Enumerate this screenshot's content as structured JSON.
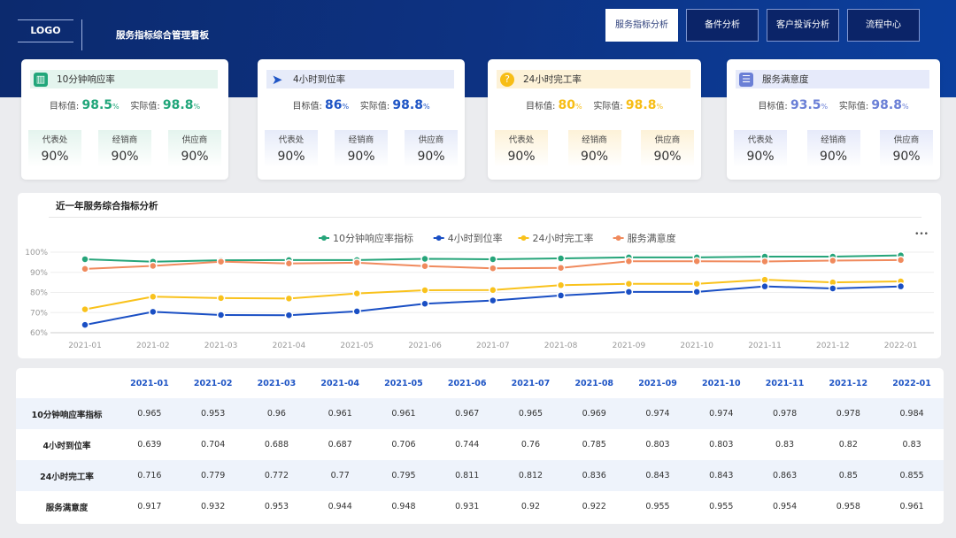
{
  "header": {
    "logo": "LOGO",
    "title": "服务指标综合管理看板"
  },
  "nav": [
    {
      "label": "服务指标分析",
      "active": true
    },
    {
      "label": "备件分析",
      "active": false
    },
    {
      "label": "客户投诉分析",
      "active": false
    },
    {
      "label": "流程中心",
      "active": false
    }
  ],
  "cards": [
    {
      "title": "10分钟响应率",
      "icon": "building-icon",
      "color": "#21a67a",
      "bg": "#e4f4ee",
      "target_label": "目标值:",
      "target": "98.5",
      "actual_label": "实际值:",
      "actual": "98.8",
      "unit": "%",
      "subs": [
        {
          "label": "代表处",
          "value": "90%"
        },
        {
          "label": "经销商",
          "value": "90%"
        },
        {
          "label": "供应商",
          "value": "90%"
        }
      ]
    },
    {
      "title": "4小时到位率",
      "icon": "paper-plane-icon",
      "color": "#1f55c5",
      "bg": "#e6ebf9",
      "target_label": "目标值:",
      "target": "86",
      "actual_label": "实际值:",
      "actual": "98.8",
      "unit": "%",
      "subs": [
        {
          "label": "代表处",
          "value": "90%"
        },
        {
          "label": "经销商",
          "value": "90%"
        },
        {
          "label": "供应商",
          "value": "90%"
        }
      ]
    },
    {
      "title": "24小时完工率",
      "icon": "question-bubble-icon",
      "color": "#f7bd15",
      "bg": "#fdf2d8",
      "target_label": "目标值:",
      "target": "80",
      "actual_label": "实际值:",
      "actual": "98.8",
      "unit": "%",
      "subs": [
        {
          "label": "代表处",
          "value": "90%"
        },
        {
          "label": "经销商",
          "value": "90%"
        },
        {
          "label": "供应商",
          "value": "90%"
        }
      ]
    },
    {
      "title": "服务满意度",
      "icon": "document-icon",
      "color": "#6a7fd6",
      "bg": "#e6eafa",
      "target_label": "目标值:",
      "target": "93.5",
      "actual_label": "实际值:",
      "actual": "98.8",
      "unit": "%",
      "subs": [
        {
          "label": "代表处",
          "value": "90%"
        },
        {
          "label": "经销商",
          "value": "90%"
        },
        {
          "label": "供应商",
          "value": "90%"
        }
      ]
    }
  ],
  "chart_panel": {
    "title": "近一年服务综合指标分析",
    "menu": "•••"
  },
  "chart_data": {
    "type": "line",
    "categories": [
      "2021-01",
      "2021-02",
      "2021-03",
      "2021-04",
      "2021-05",
      "2021-06",
      "2021-07",
      "2021-08",
      "2021-09",
      "2021-10",
      "2021-11",
      "2021-12",
      "2022-01"
    ],
    "y_ticks": [
      "60%",
      "70%",
      "80%",
      "90%",
      "100%"
    ],
    "ylim": [
      0.6,
      1.0
    ],
    "grid": true,
    "legend": "top-center",
    "series": [
      {
        "name": "10分钟响应率指标",
        "color": "#26a57a",
        "values": [
          0.965,
          0.953,
          0.96,
          0.961,
          0.961,
          0.967,
          0.965,
          0.969,
          0.974,
          0.974,
          0.978,
          0.978,
          0.984
        ]
      },
      {
        "name": "4小时到位率",
        "color": "#1a4fc4",
        "values": [
          0.639,
          0.704,
          0.688,
          0.687,
          0.706,
          0.744,
          0.76,
          0.785,
          0.803,
          0.803,
          0.83,
          0.82,
          0.83
        ]
      },
      {
        "name": "24小时完工率",
        "color": "#f9c21c",
        "values": [
          0.716,
          0.779,
          0.772,
          0.77,
          0.795,
          0.811,
          0.812,
          0.836,
          0.843,
          0.843,
          0.863,
          0.85,
          0.855
        ]
      },
      {
        "name": "服务满意度",
        "color": "#f08a5d",
        "values": [
          0.917,
          0.932,
          0.953,
          0.944,
          0.948,
          0.931,
          0.92,
          0.922,
          0.955,
          0.955,
          0.954,
          0.958,
          0.961
        ]
      }
    ]
  },
  "table": {
    "columns": [
      "2021-01",
      "2021-02",
      "2021-03",
      "2021-04",
      "2021-05",
      "2021-06",
      "2021-07",
      "2021-08",
      "2021-09",
      "2021-10",
      "2021-11",
      "2021-12",
      "2022-01"
    ],
    "rows": [
      {
        "label": "10分钟响应率指标",
        "values": [
          "0.965",
          "0.953",
          "0.96",
          "0.961",
          "0.961",
          "0.967",
          "0.965",
          "0.969",
          "0.974",
          "0.974",
          "0.978",
          "0.978",
          "0.984"
        ]
      },
      {
        "label": "4小时到位率",
        "values": [
          "0.639",
          "0.704",
          "0.688",
          "0.687",
          "0.706",
          "0.744",
          "0.76",
          "0.785",
          "0.803",
          "0.803",
          "0.83",
          "0.82",
          "0.83"
        ]
      },
      {
        "label": "24小时完工率",
        "values": [
          "0.716",
          "0.779",
          "0.772",
          "0.77",
          "0.795",
          "0.811",
          "0.812",
          "0.836",
          "0.843",
          "0.843",
          "0.863",
          "0.85",
          "0.855"
        ]
      },
      {
        "label": "服务满意度",
        "values": [
          "0.917",
          "0.932",
          "0.953",
          "0.944",
          "0.948",
          "0.931",
          "0.92",
          "0.922",
          "0.955",
          "0.955",
          "0.954",
          "0.958",
          "0.961"
        ]
      }
    ]
  }
}
